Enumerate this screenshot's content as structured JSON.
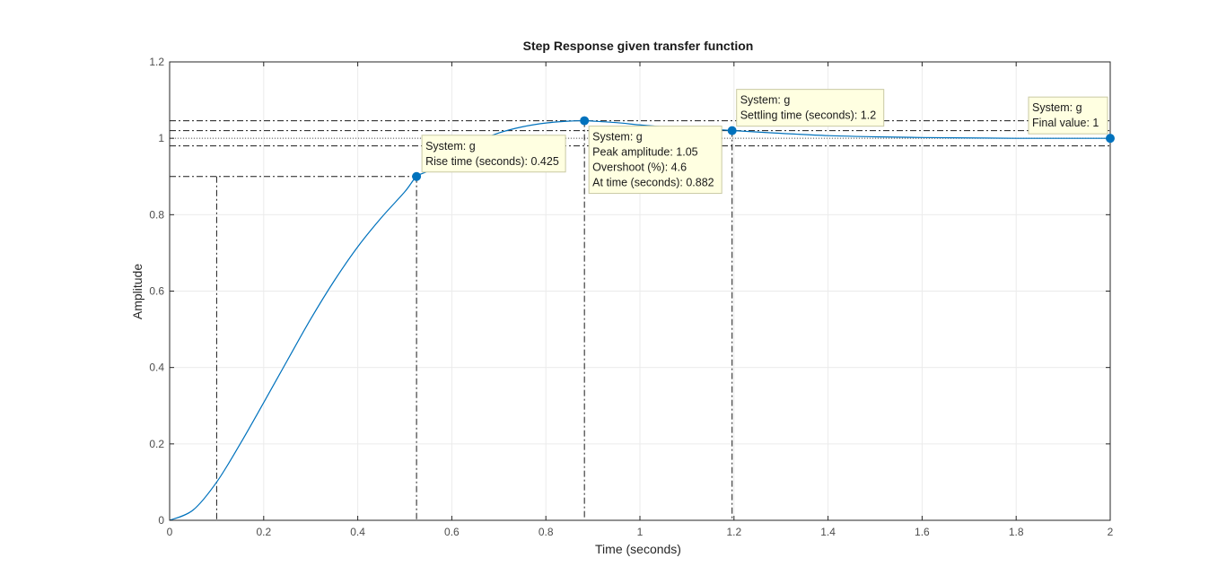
{
  "chart_data": {
    "type": "line",
    "title": "Step Response given transfer function",
    "xlabel": "Time (seconds)",
    "ylabel": "Amplitude",
    "xlim": [
      0,
      2
    ],
    "ylim": [
      0,
      1.2
    ],
    "x_ticks": [
      "0",
      "0.2",
      "0.4",
      "0.6",
      "0.8",
      "1",
      "1.2",
      "1.4",
      "1.6",
      "1.8",
      "2"
    ],
    "y_ticks": [
      "0",
      "0.2",
      "0.4",
      "0.6",
      "0.8",
      "1",
      "1.2"
    ],
    "grid": true,
    "series": [
      {
        "name": "g",
        "color": "#0072bd",
        "x": [
          0,
          0.05,
          0.1,
          0.15,
          0.2,
          0.25,
          0.3,
          0.35,
          0.4,
          0.45,
          0.5,
          0.525,
          0.55,
          0.6,
          0.65,
          0.7,
          0.75,
          0.8,
          0.85,
          0.882,
          0.9,
          0.95,
          1.0,
          1.05,
          1.1,
          1.15,
          1.2,
          1.3,
          1.4,
          1.5,
          1.6,
          1.7,
          1.8,
          1.9,
          2.0
        ],
        "y": [
          0,
          0.027,
          0.1,
          0.2,
          0.308,
          0.418,
          0.527,
          0.627,
          0.716,
          0.792,
          0.86,
          0.9,
          0.915,
          0.958,
          0.99,
          1.014,
          1.03,
          1.04,
          1.045,
          1.046,
          1.045,
          1.041,
          1.035,
          1.03,
          1.027,
          1.024,
          1.02,
          1.013,
          1.007,
          1.004,
          1.002,
          1.001,
          1.0,
          1.0,
          1.0
        ]
      }
    ],
    "settling_band": [
      0.98,
      1.02
    ],
    "rise_band": [
      0.1,
      0.9
    ],
    "annotations": [
      {
        "id": "rise",
        "x": 0.525,
        "y": 0.9,
        "lines": [
          "System: g",
          "Rise time (seconds): 0.425"
        ]
      },
      {
        "id": "peak",
        "x": 0.882,
        "y": 1.046,
        "lines": [
          "System: g",
          "Peak amplitude: 1.05",
          "Overshoot (%): 4.6",
          "At time (seconds): 0.882"
        ]
      },
      {
        "id": "settling",
        "x": 1.196,
        "y": 1.02,
        "lines": [
          "System: g",
          "Settling time (seconds): 1.2"
        ]
      },
      {
        "id": "final",
        "x": 2.0,
        "y": 1.0,
        "lines": [
          "System: g",
          "Final value: 1"
        ]
      }
    ],
    "colors": {
      "line": "#0072bd",
      "grid": "#ebebeb",
      "axis": "#262626",
      "datatip_bg": "#ffffe1",
      "datatip_border": "#c9c9a3",
      "marker_guides": "#1a1a1a"
    }
  }
}
